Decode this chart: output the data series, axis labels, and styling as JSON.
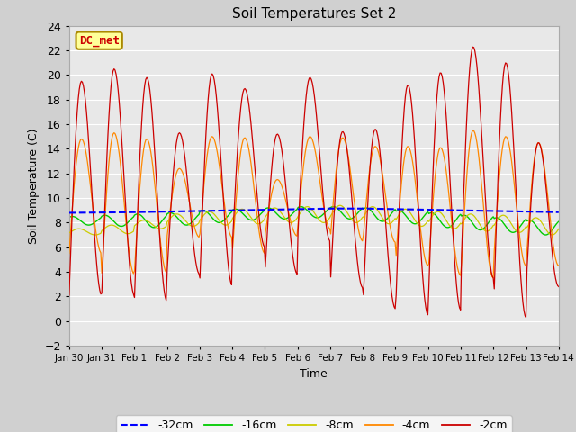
{
  "title": "Soil Temperatures Set 2",
  "xlabel": "Time",
  "ylabel": "Soil Temperature (C)",
  "ylim": [
    -2,
    24
  ],
  "yticks": [
    -2,
    0,
    2,
    4,
    6,
    8,
    10,
    12,
    14,
    16,
    18,
    20,
    22,
    24
  ],
  "annotation_text": "DC_met",
  "annotation_fg": "#cc0000",
  "annotation_bg": "#ffff99",
  "annotation_border": "#aa8800",
  "legend_entries": [
    "-32cm",
    "-16cm",
    "-8cm",
    "-4cm",
    "-2cm"
  ],
  "legend_colors": [
    "#0000ff",
    "#00cc00",
    "#cccc00",
    "#ff8800",
    "#cc0000"
  ],
  "tick_labels": [
    "Jan 30",
    "Jan 31",
    "Feb 1",
    "Feb 2",
    "Feb 3",
    "Feb 4",
    "Feb 5",
    "Feb 6",
    "Feb 7",
    "Feb 8",
    "Feb 9",
    "Feb 10",
    "Feb 11",
    "Feb 12",
    "Feb 13",
    "Feb 14"
  ],
  "tick_positions": [
    0,
    1,
    2,
    3,
    4,
    5,
    6,
    7,
    8,
    9,
    10,
    11,
    12,
    13,
    14,
    15
  ],
  "fig_facecolor": "#d0d0d0",
  "ax_facecolor": "#e8e8e8",
  "grid_color": "#ffffff",
  "base_temp": 9.0,
  "peak_2cm": [
    19.5,
    20.5,
    19.8,
    15.3,
    20.1,
    18.9,
    15.2,
    19.8,
    15.4,
    15.6,
    19.2,
    20.2,
    22.3,
    21.0,
    14.5
  ],
  "trough_2cm": [
    2.1,
    2.1,
    1.6,
    3.8,
    2.9,
    6.0,
    3.8,
    6.5,
    2.7,
    1.0,
    0.5,
    0.9,
    3.5,
    0.3,
    2.8
  ],
  "peak_4cm": [
    14.8,
    15.3,
    14.8,
    12.4,
    15.0,
    14.9,
    11.5,
    15.0,
    14.9,
    14.2,
    14.2,
    14.1,
    15.5,
    15.0,
    14.5
  ],
  "trough_4cm": [
    5.5,
    3.8,
    3.9,
    6.8,
    6.8,
    5.5,
    6.9,
    7.5,
    6.5,
    6.4,
    4.5,
    3.7,
    3.5,
    4.5,
    4.5
  ],
  "peak_8cm": [
    7.5,
    7.8,
    8.2,
    8.7,
    8.9,
    9.1,
    9.2,
    9.3,
    9.4,
    9.3,
    9.1,
    8.9,
    8.7,
    8.6,
    8.4
  ],
  "trough_8cm": [
    7.0,
    7.1,
    7.5,
    7.7,
    7.8,
    7.9,
    8.0,
    8.0,
    8.0,
    7.9,
    7.7,
    7.5,
    7.3,
    7.2,
    7.0
  ],
  "peak_16cm": [
    8.5,
    8.6,
    8.7,
    8.8,
    9.0,
    9.1,
    9.2,
    9.3,
    9.3,
    9.2,
    9.0,
    8.8,
    8.6,
    8.4,
    8.2
  ],
  "trough_16cm": [
    7.8,
    7.7,
    7.6,
    7.8,
    8.0,
    8.2,
    8.3,
    8.4,
    8.3,
    8.1,
    7.9,
    7.6,
    7.4,
    7.2,
    7.0
  ],
  "val_32cm": [
    8.8,
    8.82,
    8.85,
    8.9,
    8.95,
    9.0,
    9.05,
    9.1,
    9.15,
    9.15,
    9.1,
    9.05,
    9.0,
    8.95,
    8.9,
    8.85
  ]
}
